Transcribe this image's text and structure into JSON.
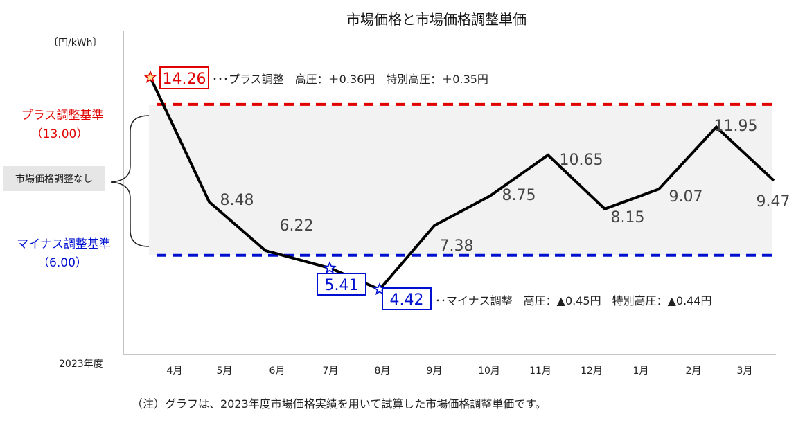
{
  "chart_data": {
    "type": "line",
    "title": "市場価格と市場価格調整単価",
    "ylabel": "〔円/kWh〕",
    "xlabel": "2023年度",
    "categories": [
      "4月",
      "5月",
      "6月",
      "7月",
      "8月",
      "9月",
      "10月",
      "11月",
      "12月",
      "1月",
      "2月",
      "3月"
    ],
    "values": [
      14.26,
      8.48,
      6.22,
      5.41,
      4.42,
      7.38,
      8.75,
      10.65,
      8.15,
      9.07,
      11.95,
      9.47
    ],
    "value_labels": [
      "14.26",
      "8.48",
      "6.22",
      "5.41",
      "4.42",
      "7.38",
      "8.75",
      "10.65",
      "8.15",
      "9.07",
      "11.95",
      "9.47"
    ],
    "ylim": [
      1.4,
      16.4
    ],
    "grid": false,
    "thresholds": {
      "upper": {
        "label": "プラス調整基準",
        "value_label": "（13.00）",
        "value": 13.0,
        "color": "#e00000"
      },
      "lower": {
        "label": "マイナス調整基準",
        "value_label": "（6.00）",
        "value": 6.0,
        "color": "#0010d0"
      }
    },
    "band_label": "市場価格調整なし",
    "annotations": {
      "plus": "･･･プラス調整　高圧：＋0.36円　特別高圧：＋0.35円",
      "minus": "･･マイナス調整　高圧：▲0.45円　特別高圧：▲0.44円"
    },
    "highlight_colors": {
      "plus": "#e00000",
      "minus": "#0010d0"
    },
    "note": "（注）グラフは、2023年度市場価格実績を用いて試算した市場価格調整単価です。"
  }
}
